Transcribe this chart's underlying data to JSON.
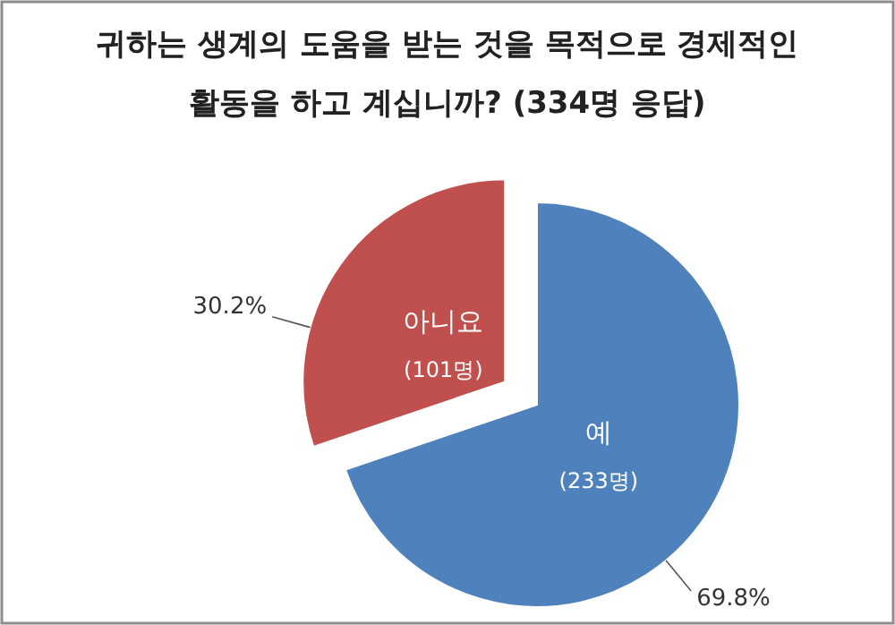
{
  "chart_data": {
    "type": "pie",
    "title": "귀하는 생계의 도움을 받는 것을 목적으로 경제적인\n활동을 하고 계십니까? (334명 응답)",
    "categories": [
      "예",
      "아니요"
    ],
    "values": [
      69.8,
      30.2
    ],
    "colors": [
      "#4f81bd",
      "#c0504d"
    ],
    "value_labels": [
      "69.8%",
      "30.2%"
    ],
    "annotations": [
      "(233명)",
      "(101명)"
    ]
  }
}
